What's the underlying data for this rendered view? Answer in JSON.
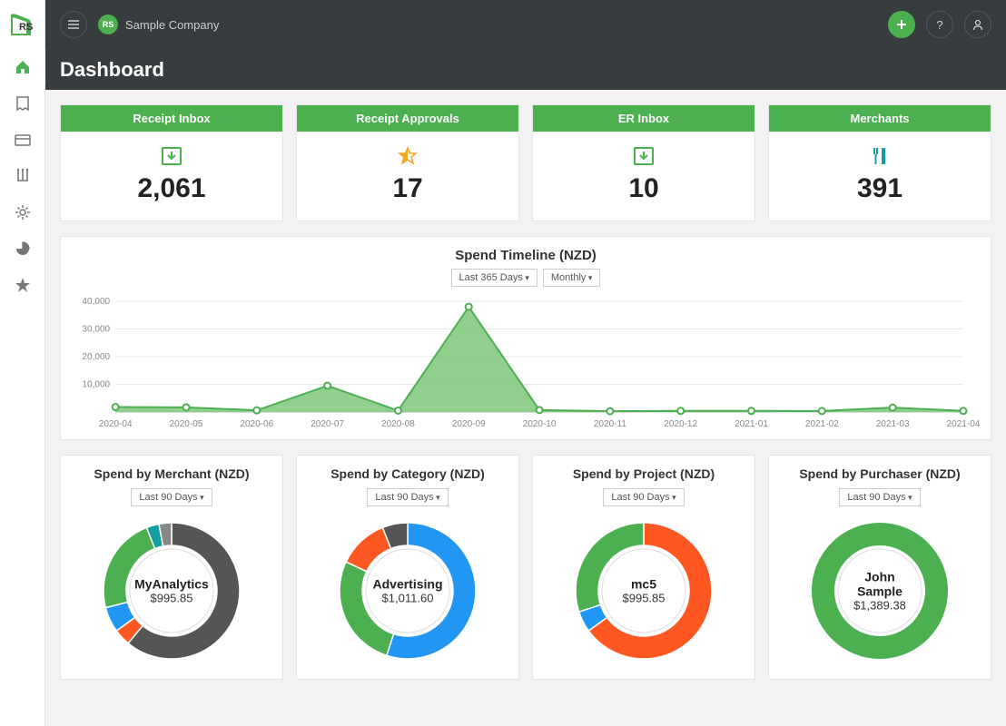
{
  "colors": {
    "accent": "#4caf50",
    "header": "#373c3f",
    "blue": "#2196f3",
    "orange": "#ff5722",
    "gold": "#f5a623",
    "teal": "#149da3",
    "grey": "#888"
  },
  "header": {
    "company_name": "Sample Company",
    "company_badge": "RS"
  },
  "page_title": "Dashboard",
  "sidebar": {
    "items": [
      {
        "name": "home",
        "active": true
      },
      {
        "name": "receipts"
      },
      {
        "name": "card"
      },
      {
        "name": "merchants"
      },
      {
        "name": "settings"
      },
      {
        "name": "reports"
      },
      {
        "name": "star"
      }
    ]
  },
  "stats": [
    {
      "title": "Receipt Inbox",
      "icon": "inbox-down",
      "icon_color": "#4caf50",
      "value": "2,061"
    },
    {
      "title": "Receipt Approvals",
      "icon": "star-half",
      "icon_color": "#f5a623",
      "value": "17"
    },
    {
      "title": "ER Inbox",
      "icon": "inbox-down",
      "icon_color": "#4caf50",
      "value": "10"
    },
    {
      "title": "Merchants",
      "icon": "food",
      "icon_color": "#149da3",
      "value": "391"
    }
  ],
  "timeline": {
    "title": "Spend Timeline (NZD)",
    "range_label": "Last 365 Days",
    "interval_label": "Monthly",
    "ylim": [
      0,
      40000
    ],
    "yticks": [
      10000,
      20000,
      30000,
      40000
    ],
    "ytick_labels": [
      "10,000",
      "20,000",
      "30,000",
      "40,000"
    ],
    "x_labels": [
      "2020-04",
      "2020-05",
      "2020-06",
      "2020-07",
      "2020-08",
      "2020-09",
      "2020-10",
      "2020-11",
      "2020-12",
      "2021-01",
      "2021-02",
      "2021-03",
      "2021-04"
    ],
    "values": [
      1800,
      1700,
      600,
      9500,
      500,
      38000,
      700,
      300,
      400,
      400,
      350,
      1600,
      400
    ],
    "line_color": "#4caf50",
    "fill_color": "#7cc77a",
    "grid_color": "#e8e8e8",
    "axis_color": "#999",
    "label_fontsize": 10
  },
  "donuts": [
    {
      "title": "Spend by Merchant (NZD)",
      "range_label": "Last 90 Days",
      "center_label": "MyAnalytics",
      "center_value": "$995.85",
      "segments": [
        {
          "color": "#555555",
          "pct": 61
        },
        {
          "color": "#ff5722",
          "pct": 4
        },
        {
          "color": "#2196f3",
          "pct": 6
        },
        {
          "color": "#4caf50",
          "pct": 23
        },
        {
          "color": "#149da3",
          "pct": 3
        },
        {
          "color": "#888888",
          "pct": 3
        }
      ]
    },
    {
      "title": "Spend by Category (NZD)",
      "range_label": "Last 90 Days",
      "center_label": "Advertising",
      "center_value": "$1,011.60",
      "segments": [
        {
          "color": "#2196f3",
          "pct": 55
        },
        {
          "color": "#4caf50",
          "pct": 27
        },
        {
          "color": "#ff5722",
          "pct": 12
        },
        {
          "color": "#555555",
          "pct": 6
        }
      ]
    },
    {
      "title": "Spend by Project (NZD)",
      "range_label": "Last 90 Days",
      "center_label": "mc5",
      "center_value": "$995.85",
      "segments": [
        {
          "color": "#ff5722",
          "pct": 65
        },
        {
          "color": "#2196f3",
          "pct": 5
        },
        {
          "color": "#4caf50",
          "pct": 30
        }
      ]
    },
    {
      "title": "Spend by Purchaser (NZD)",
      "range_label": "Last 90 Days",
      "center_label": "John Sample",
      "center_value": "$1,389.38",
      "segments": [
        {
          "color": "#4caf50",
          "pct": 100
        }
      ]
    }
  ]
}
